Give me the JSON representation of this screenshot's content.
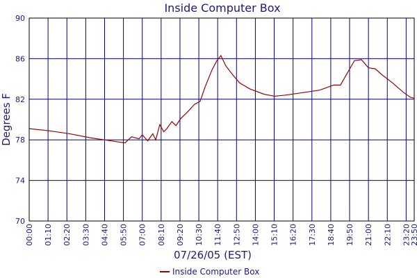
{
  "chart_data": {
    "type": "line",
    "title": "Inside Computer Box",
    "x_label": "07/26/05 (EST)",
    "y_label": "Degrees F",
    "xlim": [
      0,
      1430
    ],
    "ylim": [
      70,
      90
    ],
    "yticks": [
      70,
      74,
      78,
      82,
      86,
      90
    ],
    "xticks": [
      {
        "value": 0,
        "label": "00:00"
      },
      {
        "value": 70,
        "label": "01:10"
      },
      {
        "value": 140,
        "label": "02:20"
      },
      {
        "value": 210,
        "label": "03:30"
      },
      {
        "value": 280,
        "label": "04:40"
      },
      {
        "value": 350,
        "label": "05:50"
      },
      {
        "value": 420,
        "label": "07:00"
      },
      {
        "value": 490,
        "label": "08:10"
      },
      {
        "value": 560,
        "label": "09:20"
      },
      {
        "value": 630,
        "label": "10:30"
      },
      {
        "value": 700,
        "label": "11:40"
      },
      {
        "value": 770,
        "label": "12:50"
      },
      {
        "value": 840,
        "label": "14:00"
      },
      {
        "value": 910,
        "label": "15:10"
      },
      {
        "value": 980,
        "label": "16:20"
      },
      {
        "value": 1050,
        "label": "17:30"
      },
      {
        "value": 1120,
        "label": "18:40"
      },
      {
        "value": 1190,
        "label": "19:50"
      },
      {
        "value": 1260,
        "label": "21:00"
      },
      {
        "value": 1330,
        "label": "22:10"
      },
      {
        "value": 1400,
        "label": "23:20"
      },
      {
        "value": 1430,
        "label": "23:50"
      }
    ],
    "grid": true,
    "legend": "bottom",
    "x": [
      0,
      72,
      150,
      227,
      305,
      356,
      380,
      408,
      420,
      440,
      459,
      470,
      485,
      500,
      511,
      530,
      545,
      563,
      590,
      614,
      635,
      653,
      679,
      697,
      712,
      730,
      756,
      782,
      821,
      872,
      911,
      950,
      1002,
      1079,
      1131,
      1156,
      1182,
      1208,
      1234,
      1260,
      1285,
      1311,
      1350,
      1389,
      1415,
      1430
    ],
    "series": [
      {
        "name": "Inside Computer Box",
        "color": "#990000",
        "values": [
          79.1,
          78.9,
          78.6,
          78.2,
          77.9,
          77.7,
          78.3,
          78.1,
          78.5,
          77.9,
          78.6,
          78.0,
          79.5,
          78.8,
          79.1,
          79.8,
          79.4,
          80.1,
          80.8,
          81.5,
          81.8,
          83.2,
          84.9,
          85.8,
          86.3,
          85.3,
          84.4,
          83.6,
          83.0,
          82.5,
          82.3,
          82.4,
          82.6,
          82.9,
          83.4,
          83.4,
          84.6,
          85.8,
          85.9,
          85.1,
          85.0,
          84.4,
          83.6,
          82.7,
          82.2,
          82.1
        ]
      }
    ]
  }
}
